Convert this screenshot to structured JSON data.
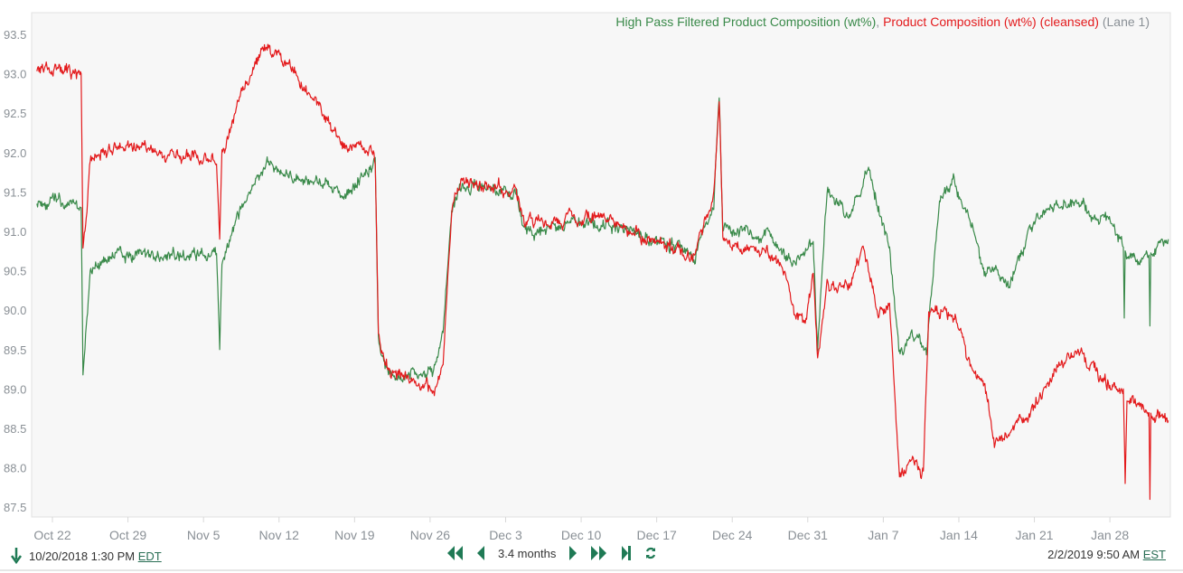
{
  "chart_data": {
    "type": "line",
    "title": "",
    "legend": {
      "placement": "top-right",
      "entries": [
        {
          "text": "High Pass Filtered Product Composition (wt%)",
          "color": "#3a8a4a"
        },
        {
          "text": ", ",
          "color": "#8a9096"
        },
        {
          "text": "Product Composition (wt%) (cleansed)",
          "color": "#e31a1c"
        },
        {
          "text": " (Lane 1)",
          "color": "#8a9096"
        }
      ]
    },
    "xlabel": "",
    "ylabel": "",
    "ylim": [
      87.3,
      93.7
    ],
    "xlim": [
      "2018-10-20T13:30",
      "2019-02-02T09:50"
    ],
    "grid": false,
    "yticks": [
      "87.5",
      "88.0",
      "88.5",
      "89.0",
      "89.5",
      "90.0",
      "90.5",
      "91.0",
      "91.5",
      "92.0",
      "92.5",
      "93.0",
      "93.5"
    ],
    "xticks": [
      {
        "label": "Oct 22",
        "date": "2018-10-22"
      },
      {
        "label": "Oct 29",
        "date": "2018-10-29"
      },
      {
        "label": "Nov 5",
        "date": "2018-11-05"
      },
      {
        "label": "Nov 12",
        "date": "2018-11-12"
      },
      {
        "label": "Nov 19",
        "date": "2018-11-19"
      },
      {
        "label": "Nov 26",
        "date": "2018-11-26"
      },
      {
        "label": "Dec 3",
        "date": "2018-12-03"
      },
      {
        "label": "Dec 10",
        "date": "2018-12-10"
      },
      {
        "label": "Dec 17",
        "date": "2018-12-17"
      },
      {
        "label": "Dec 24",
        "date": "2018-12-24"
      },
      {
        "label": "Dec 31",
        "date": "2018-12-31"
      },
      {
        "label": "Jan 7",
        "date": "2019-01-07"
      },
      {
        "label": "Jan 14",
        "date": "2019-01-14"
      },
      {
        "label": "Jan 21",
        "date": "2019-01-21"
      },
      {
        "label": "Jan 28",
        "date": "2019-01-28"
      }
    ],
    "series": [
      {
        "name": "High Pass Filtered Product Composition (wt%)",
        "color": "#3a8a4a",
        "points": [
          [
            "2018-10-20T13:30",
            91.4
          ],
          [
            "2018-10-24T16:00",
            91.3
          ],
          [
            "2018-10-24T20:00",
            89.2
          ],
          [
            "2018-10-25T12:00",
            90.5
          ],
          [
            "2018-10-28T00:00",
            90.7
          ],
          [
            "2018-11-02T00:00",
            90.7
          ],
          [
            "2018-11-06T05:00",
            90.7
          ],
          [
            "2018-11-06T12:00",
            89.5
          ],
          [
            "2018-11-06T17:00",
            90.6
          ],
          [
            "2018-11-08T08:00",
            91.2
          ],
          [
            "2018-11-10T20:00",
            91.9
          ],
          [
            "2018-11-12T22:00",
            91.7
          ],
          [
            "2018-11-15T12:00",
            91.6
          ],
          [
            "2018-11-18T00:00",
            91.5
          ],
          [
            "2018-11-20T22:00",
            91.9
          ],
          [
            "2018-11-21T05:00",
            89.6
          ],
          [
            "2018-11-22T05:00",
            89.2
          ],
          [
            "2018-11-26T08:00",
            89.2
          ],
          [
            "2018-11-27T05:00",
            89.7
          ],
          [
            "2018-11-28T00:00",
            91.3
          ],
          [
            "2018-11-28T22:00",
            91.6
          ],
          [
            "2018-12-03T22:00",
            91.5
          ],
          [
            "2018-12-04T17:00",
            91.0
          ],
          [
            "2018-12-11T10:00",
            91.1
          ],
          [
            "2018-12-14T19:00",
            91.0
          ],
          [
            "2018-12-20T14:00",
            90.7
          ],
          [
            "2018-12-22T07:00",
            91.4
          ],
          [
            "2018-12-22T19:00",
            92.7
          ],
          [
            "2018-12-23T03:00",
            91.0
          ],
          [
            "2018-12-27T07:00",
            91.0
          ],
          [
            "2018-12-29T19:00",
            90.6
          ],
          [
            "2018-12-31T12:00",
            90.8
          ],
          [
            "2018-12-31T22:00",
            89.5
          ],
          [
            "2019-01-01T19:00",
            91.5
          ],
          [
            "2019-01-03T22:00",
            91.2
          ],
          [
            "2019-01-05T12:00",
            91.8
          ],
          [
            "2019-01-07T14:00",
            90.8
          ],
          [
            "2019-01-08T12:00",
            89.4
          ],
          [
            "2019-01-09T17:00",
            89.7
          ],
          [
            "2019-01-11T00:00",
            89.5
          ],
          [
            "2019-01-12T05:00",
            91.4
          ],
          [
            "2019-01-13T12:00",
            91.7
          ],
          [
            "2019-01-14T19:00",
            91.2
          ],
          [
            "2019-01-16T10:00",
            90.5
          ],
          [
            "2019-01-18T22:00",
            90.4
          ],
          [
            "2019-01-20T14:00",
            91.0
          ],
          [
            "2019-01-22T07:00",
            91.3
          ],
          [
            "2019-01-24T19:00",
            91.4
          ],
          [
            "2019-01-28T05:00",
            91.1
          ],
          [
            "2019-01-29T06:00",
            90.8
          ],
          [
            "2019-01-29T08:00",
            89.9
          ],
          [
            "2019-01-29T10:00",
            90.8
          ],
          [
            "2019-01-30T17:00",
            90.6
          ],
          [
            "2019-01-31T15:00",
            90.7
          ],
          [
            "2019-01-31T17:00",
            89.8
          ],
          [
            "2019-01-31T19:00",
            90.7
          ],
          [
            "2019-02-02T09:50",
            90.9
          ]
        ]
      },
      {
        "name": "Product Composition (wt%) (cleansed)",
        "color": "#e31a1c",
        "points": [
          [
            "2018-10-20T13:30",
            93.1
          ],
          [
            "2018-10-24T16:00",
            93.0
          ],
          [
            "2018-10-24T20:00",
            90.7
          ],
          [
            "2018-10-25T12:00",
            91.9
          ],
          [
            "2018-10-28T00:00",
            92.1
          ],
          [
            "2018-11-02T00:00",
            92.0
          ],
          [
            "2018-11-06T05:00",
            91.9
          ],
          [
            "2018-11-06T12:00",
            90.9
          ],
          [
            "2018-11-06T17:00",
            92.0
          ],
          [
            "2018-11-08T08:00",
            92.7
          ],
          [
            "2018-11-10T20:00",
            93.4
          ],
          [
            "2018-11-12T22:00",
            93.1
          ],
          [
            "2018-11-15T12:00",
            92.6
          ],
          [
            "2018-11-18T00:00",
            92.1
          ],
          [
            "2018-11-20T12:00",
            92.0
          ],
          [
            "2018-11-20T22:00",
            91.8
          ],
          [
            "2018-11-21T05:00",
            89.7
          ],
          [
            "2018-11-22T05:00",
            89.2
          ],
          [
            "2018-11-26T08:00",
            89.0
          ],
          [
            "2018-11-27T05:00",
            89.3
          ],
          [
            "2018-11-28T00:00",
            91.3
          ],
          [
            "2018-11-28T22:00",
            91.6
          ],
          [
            "2018-12-03T22:00",
            91.5
          ],
          [
            "2018-12-04T17:00",
            91.1
          ],
          [
            "2018-12-11T10:00",
            91.2
          ],
          [
            "2018-12-14T19:00",
            91.0
          ],
          [
            "2018-12-20T14:00",
            90.7
          ],
          [
            "2018-12-22T07:00",
            91.5
          ],
          [
            "2018-12-22T19:00",
            92.7
          ],
          [
            "2018-12-23T03:00",
            91.0
          ],
          [
            "2018-12-24T00:00",
            90.8
          ],
          [
            "2018-12-27T07:00",
            90.8
          ],
          [
            "2018-12-29T00:00",
            90.4
          ],
          [
            "2018-12-29T19:00",
            89.9
          ],
          [
            "2018-12-30T17:00",
            89.8
          ],
          [
            "2018-12-31T12:00",
            90.5
          ],
          [
            "2018-12-31T22:00",
            89.4
          ],
          [
            "2019-01-01T19:00",
            90.3
          ],
          [
            "2019-01-03T22:00",
            90.3
          ],
          [
            "2019-01-05T03:00",
            90.8
          ],
          [
            "2019-01-06T10:00",
            90.0
          ],
          [
            "2019-01-07T14:00",
            90.1
          ],
          [
            "2019-01-08T12:00",
            87.9
          ],
          [
            "2019-01-09T17:00",
            88.1
          ],
          [
            "2019-01-10T17:00",
            87.9
          ],
          [
            "2019-01-11T05:00",
            90.0
          ],
          [
            "2019-01-12T17:00",
            90.0
          ],
          [
            "2019-01-13T22:00",
            89.8
          ],
          [
            "2019-01-14T19:00",
            89.4
          ],
          [
            "2019-01-16T10:00",
            89.1
          ],
          [
            "2019-01-17T07:00",
            88.3
          ],
          [
            "2019-01-20T14:00",
            88.7
          ],
          [
            "2019-01-22T17:00",
            89.2
          ],
          [
            "2019-01-24T19:00",
            89.5
          ],
          [
            "2019-01-27T07:00",
            89.1
          ],
          [
            "2019-01-29T06:00",
            89.0
          ],
          [
            "2019-01-29T10:00",
            87.8
          ],
          [
            "2019-01-29T14:00",
            88.9
          ],
          [
            "2019-01-30T17:00",
            88.8
          ],
          [
            "2019-01-31T15:00",
            88.7
          ],
          [
            "2019-01-31T17:00",
            87.6
          ],
          [
            "2019-01-31T19:00",
            88.7
          ],
          [
            "2019-02-02T09:50",
            88.6
          ]
        ]
      }
    ]
  },
  "footer": {
    "start_time": "10/20/2018 1:30 PM",
    "start_tz": "EDT",
    "range_label": "3.4 months",
    "end_time": "2/2/2019 9:50 AM",
    "end_tz": "EST",
    "icons": [
      "arrow-down-icon",
      "fast-back-icon",
      "step-back-icon",
      "step-forward-icon",
      "fast-forward-icon",
      "skip-to-end-icon",
      "refresh-icon"
    ],
    "icon_color": "#1f7a55"
  }
}
